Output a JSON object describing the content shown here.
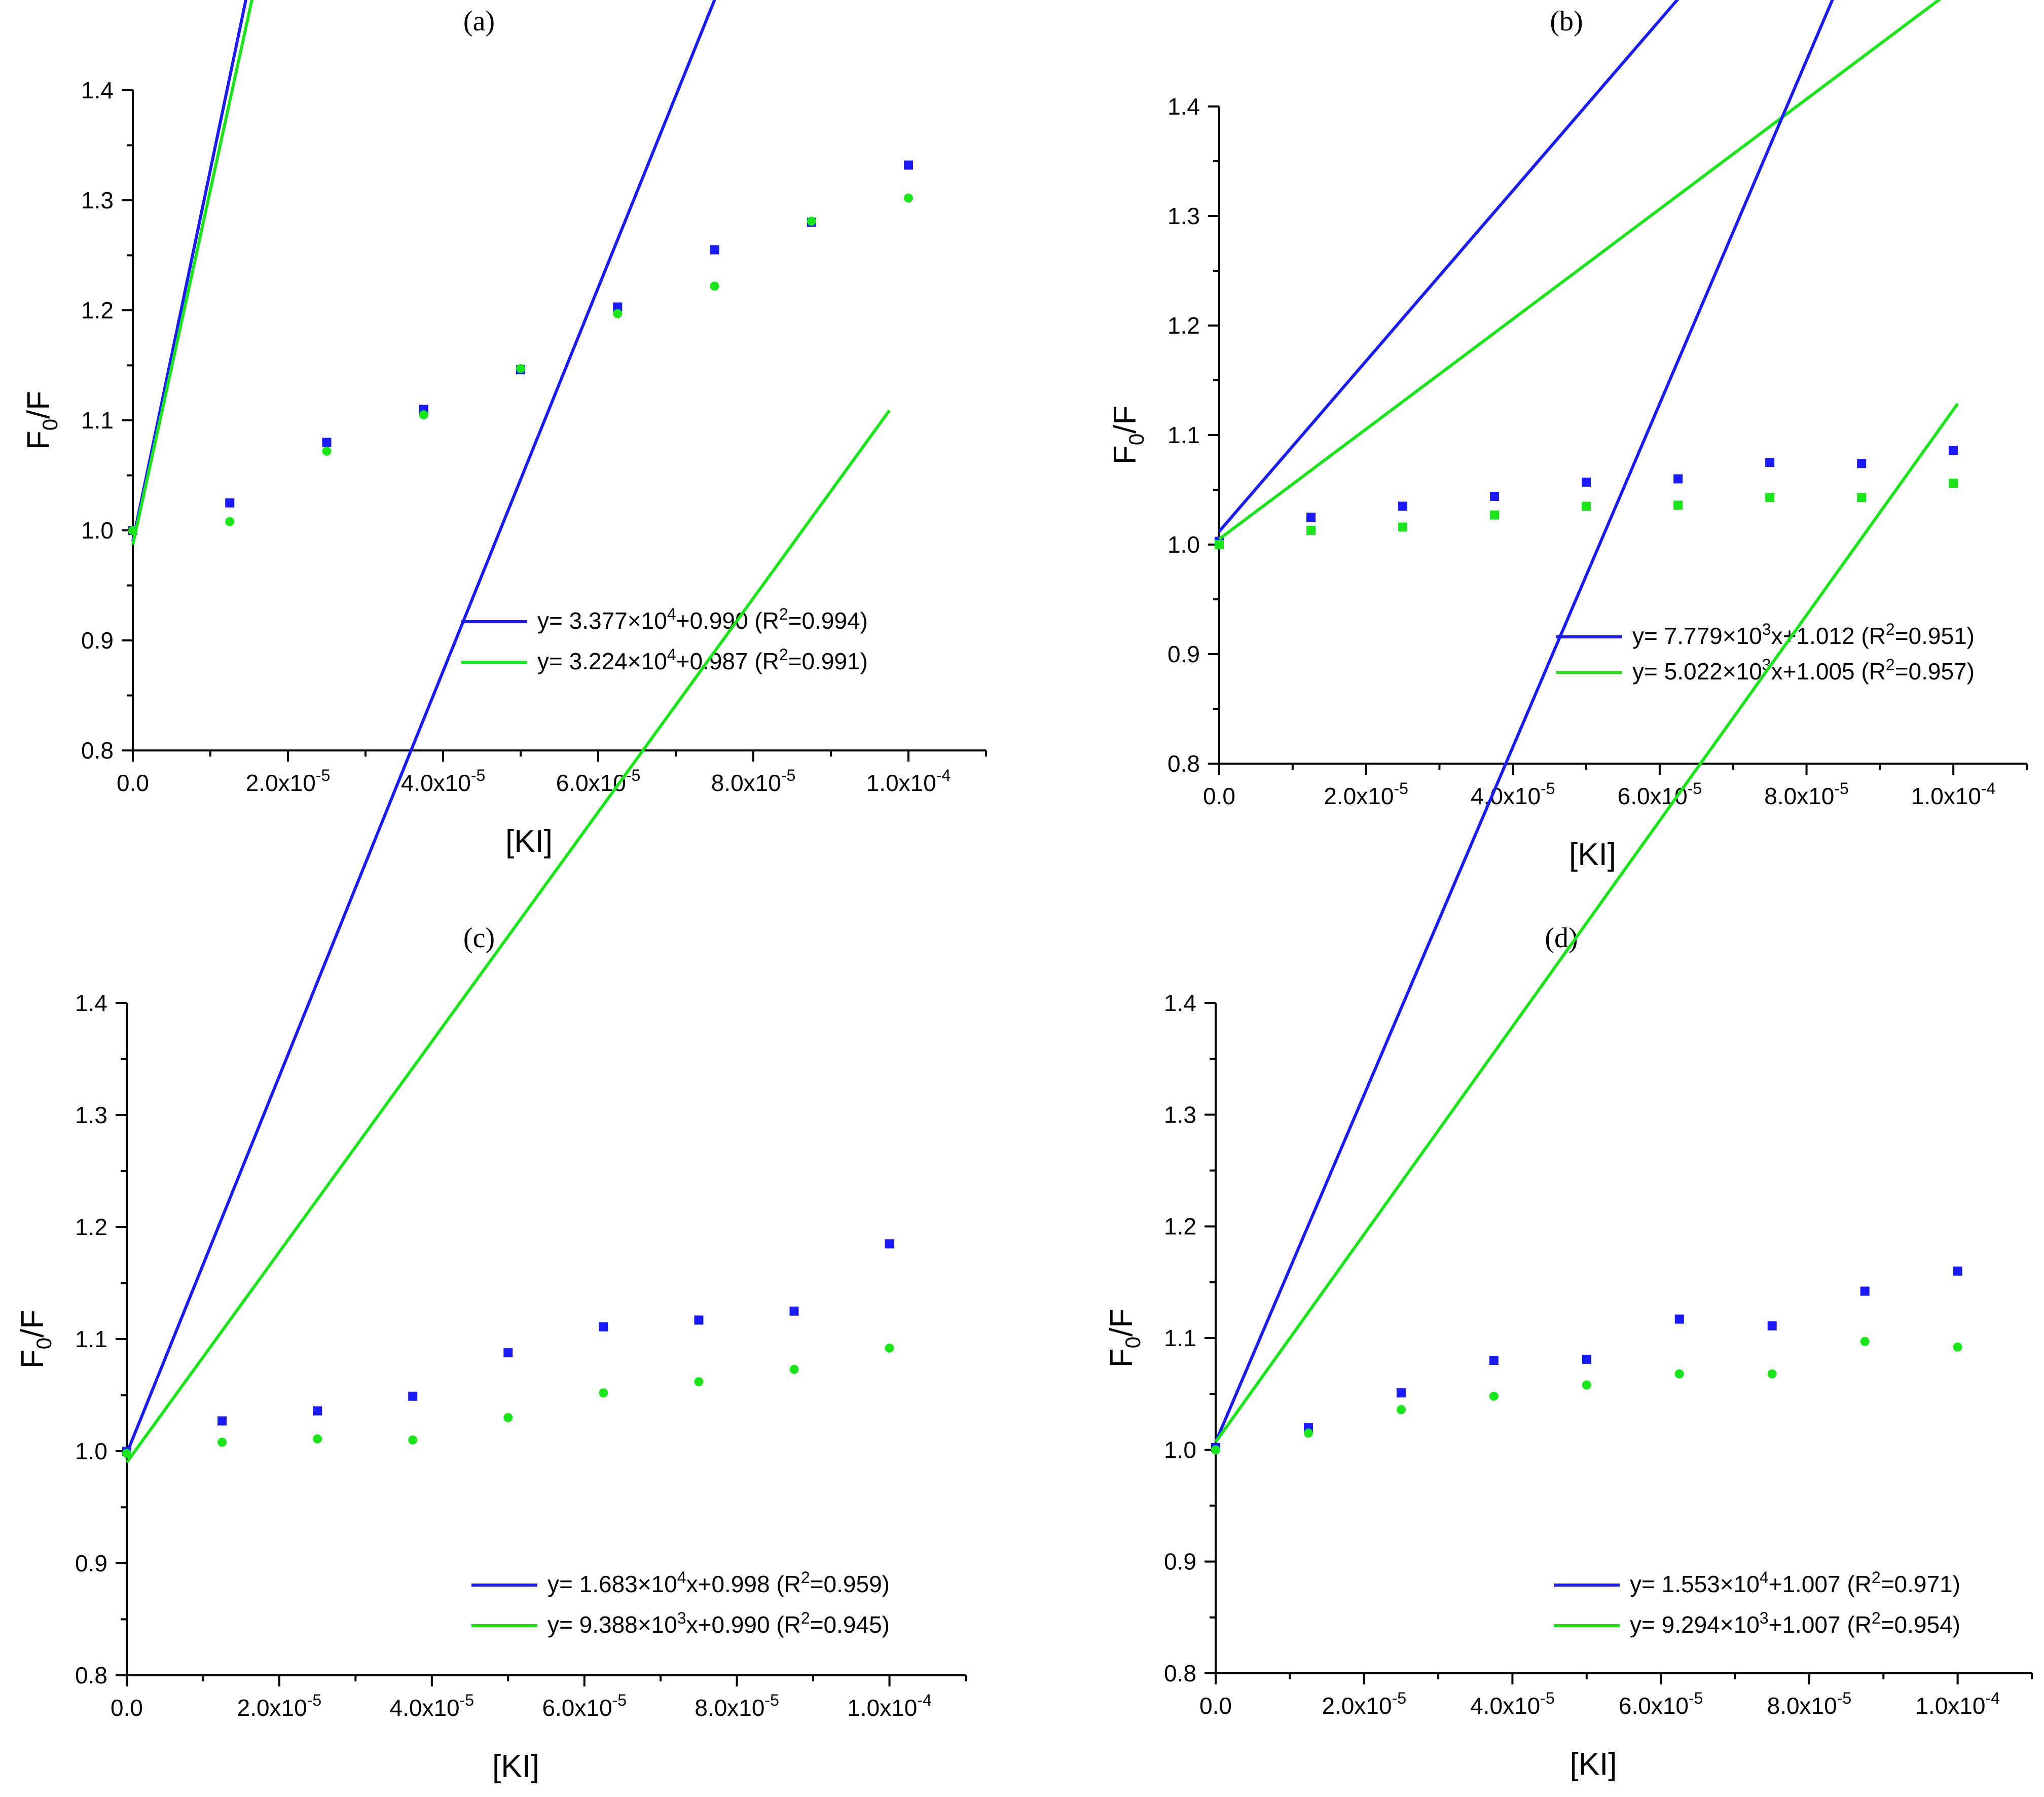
{
  "chart_data": [
    {
      "type": "scatter",
      "title": "(a)",
      "xlabel": "[KI]",
      "ylabel": "F0/F",
      "xlim": [
        0,
        0.00011
      ],
      "ylim": [
        0.8,
        1.4
      ],
      "x_ticks": [
        0,
        2e-05,
        4e-05,
        6e-05,
        8e-05,
        0.0001
      ],
      "x_tick_labels": [
        "0.0",
        "2.0x10-5",
        "4.0x10-5",
        "6.0x10-5",
        "8.0x10-5",
        "1.0x10-4"
      ],
      "y_ticks": [
        0.8,
        0.9,
        1.0,
        1.1,
        1.2,
        1.3,
        1.4
      ],
      "y_tick_labels": [
        "0.8",
        "0.9",
        "1.0",
        "1.1",
        "1.2",
        "1.3",
        "1.4"
      ],
      "legend_position": "bottom-right",
      "series": [
        {
          "name": "y= 3.377×10^4+0.990 (R^2=0.994)",
          "marker": "square",
          "color": "#1a1aff",
          "x": [
            0,
            1.25e-05,
            2.5e-05,
            3.75e-05,
            5e-05,
            6.25e-05,
            7.5e-05,
            8.75e-05,
            0.0001
          ],
          "y": [
            1.0,
            1.025,
            1.08,
            1.11,
            1.146,
            1.203,
            1.255,
            1.28,
            1.332
          ],
          "fit": {
            "slope": 33770,
            "intercept": 0.99,
            "x_range": [
              0,
              0.0001
            ]
          }
        },
        {
          "name": "y= 3.224×10^4+0.987 (R^2=0.991)",
          "marker": "circle",
          "color": "#19e619",
          "x": [
            0,
            1.25e-05,
            2.5e-05,
            3.75e-05,
            5e-05,
            6.25e-05,
            7.5e-05,
            8.75e-05,
            0.0001
          ],
          "y": [
            1.0,
            1.008,
            1.072,
            1.105,
            1.147,
            1.197,
            1.222,
            1.281,
            1.302
          ],
          "fit": {
            "slope": 32240,
            "intercept": 0.987,
            "x_range": [
              0,
              0.0001
            ]
          }
        }
      ],
      "legend": [
        {
          "prefix": "y= 3.377×10",
          "sup1": "4",
          "mid": "+0.990 (R",
          "sup2": "2",
          "suffix": "=0.994)"
        },
        {
          "prefix": "y= 3.224×10",
          "sup1": "4",
          "mid": "+0.987 (R",
          "sup2": "2",
          "suffix": "=0.991)"
        }
      ]
    },
    {
      "type": "scatter",
      "title": "(b)",
      "xlabel": "[KI]",
      "ylabel": "F0/F",
      "xlim": [
        0,
        0.00011
      ],
      "ylim": [
        0.8,
        1.4
      ],
      "x_ticks": [
        0,
        2e-05,
        4e-05,
        6e-05,
        8e-05,
        0.0001
      ],
      "x_tick_labels": [
        "0.0",
        "2.0x10-5",
        "4.0x10-5",
        "6.0x10-5",
        "8.0x10-5",
        "1.0x10-4"
      ],
      "y_ticks": [
        0.8,
        0.9,
        1.0,
        1.1,
        1.2,
        1.3,
        1.4
      ],
      "y_tick_labels": [
        "0.8",
        "0.9",
        "1.0",
        "1.1",
        "1.2",
        "1.3",
        "1.4"
      ],
      "legend_position": "bottom-right",
      "series": [
        {
          "name": "y= 7.779×10^3x+1.012 (R^2=0.951)",
          "marker": "square",
          "color": "#1a1aff",
          "x": [
            0,
            1.25e-05,
            2.5e-05,
            3.75e-05,
            5e-05,
            6.25e-05,
            7.5e-05,
            8.75e-05,
            0.0001
          ],
          "y": [
            1.003,
            1.025,
            1.035,
            1.044,
            1.057,
            1.06,
            1.075,
            1.074,
            1.086
          ],
          "fit": {
            "slope": 7779,
            "intercept": 1.012,
            "x_range": [
              0,
              0.0001
            ]
          }
        },
        {
          "name": "y= 5.022×10^3x+1.005 (R^2=0.957)",
          "marker": "square",
          "color": "#19e619",
          "x": [
            0,
            1.25e-05,
            2.5e-05,
            3.75e-05,
            5e-05,
            6.25e-05,
            7.5e-05,
            8.75e-05,
            0.0001
          ],
          "y": [
            1.0,
            1.013,
            1.016,
            1.027,
            1.035,
            1.036,
            1.043,
            1.043,
            1.056
          ],
          "fit": {
            "slope": 5022,
            "intercept": 1.005,
            "x_range": [
              0,
              0.0001
            ]
          }
        }
      ],
      "legend": [
        {
          "prefix": "y= 7.779×10",
          "sup1": "3",
          "mid": "x+1.012 (R",
          "sup2": "2",
          "suffix": "=0.951)"
        },
        {
          "prefix": "y= 5.022×10",
          "sup1": "3",
          "mid": "x+1.005 (R",
          "sup2": "2",
          "suffix": "=0.957)"
        }
      ]
    },
    {
      "type": "scatter",
      "title": "(c)",
      "xlabel": "[KI]",
      "ylabel": "F0/F",
      "xlim": [
        0,
        0.00011
      ],
      "ylim": [
        0.8,
        1.4
      ],
      "x_ticks": [
        0,
        2e-05,
        4e-05,
        6e-05,
        8e-05,
        0.0001
      ],
      "x_tick_labels": [
        "0.0",
        "2.0x10-5",
        "4.0x10-5",
        "6.0x10-5",
        "8.0x10-5",
        "1.0x10-4"
      ],
      "y_ticks": [
        0.8,
        0.9,
        1.0,
        1.1,
        1.2,
        1.3,
        1.4
      ],
      "y_tick_labels": [
        "0.8",
        "0.9",
        "1.0",
        "1.1",
        "1.2",
        "1.3",
        "1.4"
      ],
      "legend_position": "bottom-right",
      "series": [
        {
          "name": "y= 1.683×10^4x+0.998 (R^2=0.959)",
          "marker": "square",
          "color": "#1a1aff",
          "x": [
            0,
            1.25e-05,
            2.5e-05,
            3.75e-05,
            5e-05,
            6.25e-05,
            7.5e-05,
            8.75e-05,
            0.0001
          ],
          "y": [
            1.0,
            1.027,
            1.036,
            1.049,
            1.088,
            1.111,
            1.117,
            1.125,
            1.185
          ],
          "fit": {
            "slope": 16830,
            "intercept": 0.998,
            "x_range": [
              0,
              0.0001
            ]
          }
        },
        {
          "name": "y= 9.388×10^3x+0.990 (R^2=0.945)",
          "marker": "circle",
          "color": "#19e619",
          "x": [
            0,
            1.25e-05,
            2.5e-05,
            3.75e-05,
            5e-05,
            6.25e-05,
            7.5e-05,
            8.75e-05,
            0.0001
          ],
          "y": [
            0.998,
            1.008,
            1.011,
            1.01,
            1.03,
            1.052,
            1.062,
            1.073,
            1.092
          ],
          "fit": {
            "slope": 9388,
            "intercept": 0.99,
            "x_range": [
              0,
              0.0001
            ]
          }
        }
      ],
      "legend": [
        {
          "prefix": "y= 1.683×10",
          "sup1": "4",
          "mid": "x+0.998 (R",
          "sup2": "2",
          "suffix": "=0.959)"
        },
        {
          "prefix": "y= 9.388×10",
          "sup1": "3",
          "mid": "x+0.990 (R",
          "sup2": "2",
          "suffix": "=0.945)"
        }
      ]
    },
    {
      "type": "scatter",
      "title": "(d)",
      "xlabel": "[KI]",
      "ylabel": "F0/F",
      "xlim": [
        0,
        0.00011
      ],
      "ylim": [
        0.8,
        1.4
      ],
      "x_ticks": [
        0,
        2e-05,
        4e-05,
        6e-05,
        8e-05,
        0.0001
      ],
      "x_tick_labels": [
        "0.0",
        "2.0x10-5",
        "4.0x10-5",
        "6.0x10-5",
        "8.0x10-5",
        "1.0x10-4"
      ],
      "y_ticks": [
        0.8,
        0.9,
        1.0,
        1.1,
        1.2,
        1.3,
        1.4
      ],
      "y_tick_labels": [
        "0.8",
        "0.9",
        "1.0",
        "1.1",
        "1.2",
        "1.3",
        "1.4"
      ],
      "legend_position": "bottom-right",
      "series": [
        {
          "name": "y= 1.553×10^4+1.007 (R^2=0.971)",
          "marker": "square",
          "color": "#1a1aff",
          "x": [
            0,
            1.25e-05,
            2.5e-05,
            3.75e-05,
            5e-05,
            6.25e-05,
            7.5e-05,
            8.75e-05,
            0.0001
          ],
          "y": [
            1.002,
            1.02,
            1.051,
            1.08,
            1.081,
            1.117,
            1.111,
            1.142,
            1.16
          ],
          "fit": {
            "slope": 15530,
            "intercept": 1.007,
            "x_range": [
              0,
              0.0001
            ]
          }
        },
        {
          "name": "y= 9.294×10^3+1.007 (R^2=0.954)",
          "marker": "circle",
          "color": "#19e619",
          "x": [
            0,
            1.25e-05,
            2.5e-05,
            3.75e-05,
            5e-05,
            6.25e-05,
            7.5e-05,
            8.75e-05,
            0.0001
          ],
          "y": [
            1.0,
            1.015,
            1.036,
            1.048,
            1.058,
            1.068,
            1.068,
            1.097,
            1.092
          ],
          "fit": {
            "slope": 9294,
            "intercept": 1.007,
            "x_range": [
              0,
              0.0001
            ]
          }
        }
      ],
      "legend": [
        {
          "prefix": "y= 1.553×10",
          "sup1": "4",
          "mid": "+1.007 (R",
          "sup2": "2",
          "suffix": "=0.971)"
        },
        {
          "prefix": "y= 9.294×10",
          "sup1": "3",
          "mid": "+1.007 (R",
          "sup2": "2",
          "suffix": "=0.954)"
        }
      ]
    }
  ]
}
